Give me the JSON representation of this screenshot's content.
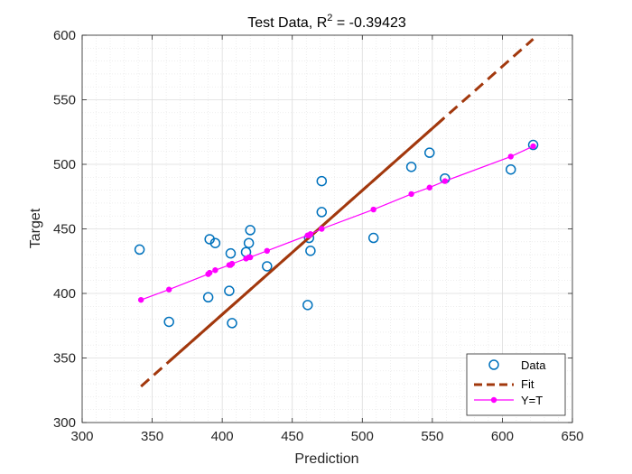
{
  "chart_data": {
    "type": "scatter",
    "title_prefix": "Test Data, R",
    "title_sup": "2",
    "title_suffix": " = -0.39423",
    "xlabel": "Prediction",
    "ylabel": "Target",
    "xlim": [
      300,
      650
    ],
    "ylim": [
      300,
      600
    ],
    "xticks": [
      300,
      350,
      400,
      450,
      500,
      550,
      600,
      650
    ],
    "yticks": [
      300,
      350,
      400,
      450,
      500,
      550,
      600
    ],
    "xtick_labels": [
      "300",
      "350",
      "400",
      "450",
      "500",
      "550",
      "600",
      "650"
    ],
    "ytick_labels": [
      "300",
      "350",
      "400",
      "450",
      "500",
      "550",
      "600"
    ],
    "grid": true,
    "minor_grid": true,
    "legend_position": "bottom-right",
    "colors": {
      "data": "#0072BD",
      "fit": "#A2380D",
      "yt": "#FF00FF",
      "grid": "#e3e3e3",
      "axis": "#262626"
    },
    "series": [
      {
        "name": "Data",
        "style": "circle-markers",
        "points": [
          [
            341,
            434
          ],
          [
            362,
            378
          ],
          [
            390,
            397
          ],
          [
            391,
            442
          ],
          [
            395,
            439
          ],
          [
            405,
            402
          ],
          [
            406,
            431
          ],
          [
            407,
            377
          ],
          [
            417,
            432
          ],
          [
            419,
            439
          ],
          [
            420,
            449
          ],
          [
            432,
            421
          ],
          [
            461,
            391
          ],
          [
            462,
            443
          ],
          [
            463,
            433
          ],
          [
            471,
            487
          ],
          [
            471,
            463
          ],
          [
            508,
            443
          ],
          [
            535,
            498
          ],
          [
            548,
            509
          ],
          [
            559,
            489
          ],
          [
            606,
            496
          ],
          [
            622,
            515
          ]
        ]
      },
      {
        "name": "Fit",
        "style": "line",
        "x_range": [
          342,
          622
        ],
        "y_range": [
          328,
          597
        ],
        "solid_x_range": [
          362,
          558
        ]
      },
      {
        "name": "Y=T",
        "style": "line-with-dots",
        "points": [
          [
            342,
            395
          ],
          [
            362,
            403
          ],
          [
            390,
            415
          ],
          [
            391,
            416
          ],
          [
            395,
            418
          ],
          [
            405,
            422
          ],
          [
            406,
            422
          ],
          [
            407,
            423
          ],
          [
            417,
            427
          ],
          [
            419,
            428
          ],
          [
            420,
            428
          ],
          [
            432,
            433
          ],
          [
            461,
            445
          ],
          [
            462,
            445
          ],
          [
            463,
            446
          ],
          [
            471,
            450
          ],
          [
            508,
            465
          ],
          [
            535,
            477
          ],
          [
            548,
            482
          ],
          [
            559,
            487
          ],
          [
            606,
            506
          ],
          [
            622,
            514
          ]
        ]
      }
    ]
  }
}
